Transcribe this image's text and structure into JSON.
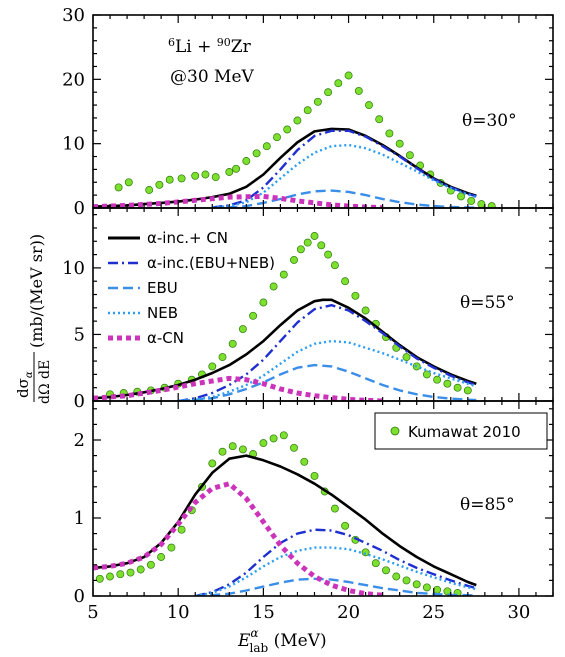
{
  "chart_data": [
    {
      "type": "line",
      "panel": "top",
      "x_range": [
        5,
        32
      ],
      "ylim": [
        0,
        30
      ],
      "yticks": [
        "0",
        "10",
        "20",
        "30"
      ],
      "annotations": {
        "reaction_a": "6",
        "reaction_b": "Li + ",
        "reaction_c": "90",
        "reaction_d": "Zr",
        "energy": "@30 MeV",
        "angle": "θ=30°"
      },
      "series": [
        {
          "key": "total",
          "x": [
            5,
            6,
            7,
            8,
            9,
            10,
            11,
            12,
            13,
            14,
            15,
            16,
            17,
            18,
            19,
            20,
            21,
            22,
            23,
            24,
            25,
            26,
            27,
            27.5
          ],
          "y": [
            0.2,
            0.3,
            0.4,
            0.6,
            0.8,
            1.0,
            1.3,
            1.7,
            2.2,
            3.3,
            5.2,
            7.8,
            10.2,
            11.9,
            12.3,
            12.2,
            11.2,
            9.8,
            8.1,
            6.3,
            4.6,
            3.3,
            2.3,
            1.9
          ]
        },
        {
          "key": "inc",
          "x": [
            12,
            13,
            14,
            15,
            16,
            17,
            18,
            19,
            20,
            21,
            22,
            23,
            24,
            25,
            26,
            27,
            27.5
          ],
          "y": [
            0.1,
            0.4,
            1.2,
            3.2,
            6.0,
            9.0,
            11.2,
            12.0,
            12.0,
            11.1,
            9.6,
            8.0,
            6.2,
            4.5,
            3.2,
            2.2,
            1.8
          ]
        },
        {
          "key": "ebu",
          "x": [
            12,
            13,
            14,
            15,
            16,
            17,
            18,
            19,
            20,
            21,
            22,
            23,
            24,
            25,
            26,
            27,
            27.5
          ],
          "y": [
            0.0,
            0.1,
            0.3,
            0.8,
            1.4,
            2.1,
            2.6,
            2.7,
            2.5,
            2.0,
            1.4,
            0.9,
            0.55,
            0.3,
            0.15,
            0.08,
            0.05
          ]
        },
        {
          "key": "neb",
          "x": [
            12,
            13,
            14,
            15,
            16,
            17,
            18,
            19,
            20,
            21,
            22,
            23,
            24,
            25,
            26,
            27,
            27.5
          ],
          "y": [
            0.1,
            0.3,
            0.9,
            2.4,
            4.6,
            6.8,
            8.6,
            9.6,
            9.8,
            9.3,
            8.3,
            7.0,
            5.7,
            4.3,
            3.1,
            2.1,
            1.7
          ]
        },
        {
          "key": "cn",
          "x": [
            5,
            7,
            9,
            11,
            13,
            15,
            16,
            17,
            18,
            19,
            20,
            21,
            22
          ],
          "y": [
            0.2,
            0.4,
            0.7,
            1.2,
            1.7,
            1.8,
            1.5,
            1.1,
            0.8,
            0.5,
            0.3,
            0.15,
            0.05
          ]
        }
      ],
      "points": {
        "x": [
          6.5,
          7.1,
          8.3,
          8.9,
          9.5,
          10.2,
          11.0,
          11.6,
          12.2,
          13.0,
          13.4,
          14.0,
          14.6,
          15.2,
          15.8,
          16.4,
          17.0,
          17.6,
          18.2,
          18.8,
          19.4,
          20.0,
          20.6,
          21.2,
          21.8,
          22.4,
          23.0,
          23.6,
          24.2,
          24.8,
          25.4,
          26.0,
          26.6,
          27.2,
          27.8,
          28.4
        ],
        "y": [
          3.2,
          4.0,
          2.8,
          3.6,
          4.4,
          4.6,
          5.0,
          5.2,
          4.8,
          5.6,
          6.1,
          7.3,
          8.5,
          9.6,
          11.0,
          12.2,
          13.6,
          15.2,
          16.5,
          18.0,
          19.4,
          20.6,
          18.2,
          16.0,
          13.8,
          11.6,
          10.0,
          8.2,
          6.6,
          5.2,
          3.9,
          2.7,
          1.8,
          1.1,
          0.6,
          0.3
        ]
      }
    },
    {
      "type": "line",
      "panel": "middle",
      "x_range": [
        5,
        32
      ],
      "ylim": [
        0,
        14.5
      ],
      "yticks": [
        "0",
        "5",
        "10"
      ],
      "annotations": {
        "angle": "θ=55°"
      },
      "legend": [
        {
          "key": "total",
          "label": "α-inc.+ CN"
        },
        {
          "key": "inc",
          "label": "α-inc.(EBU+NEB)"
        },
        {
          "key": "ebu",
          "label": "EBU"
        },
        {
          "key": "neb",
          "label": "NEB"
        },
        {
          "key": "cn",
          "label": "α-CN"
        }
      ],
      "series": [
        {
          "key": "total",
          "x": [
            5,
            6,
            7,
            8,
            9,
            10,
            11,
            12,
            13,
            14,
            15,
            16,
            17,
            18,
            18.5,
            19,
            20,
            21,
            22,
            23,
            24,
            25,
            26,
            27,
            27.5
          ],
          "y": [
            0.2,
            0.3,
            0.45,
            0.65,
            0.9,
            1.2,
            1.6,
            2.1,
            2.7,
            3.5,
            4.5,
            5.7,
            6.8,
            7.5,
            7.6,
            7.6,
            7.0,
            6.2,
            5.2,
            4.2,
            3.3,
            2.6,
            2.0,
            1.5,
            1.3
          ]
        },
        {
          "key": "inc",
          "x": [
            10,
            11,
            12,
            13,
            14,
            15,
            16,
            17,
            18,
            19,
            20,
            21,
            22,
            23,
            24,
            25,
            26,
            27,
            27.5
          ],
          "y": [
            0.0,
            0.2,
            0.6,
            1.2,
            2.0,
            3.1,
            4.5,
            5.9,
            6.9,
            7.2,
            6.8,
            6.0,
            5.1,
            4.1,
            3.2,
            2.5,
            1.9,
            1.4,
            1.2
          ]
        },
        {
          "key": "ebu",
          "x": [
            10,
            11,
            12,
            13,
            14,
            15,
            16,
            17,
            18,
            19,
            20,
            21,
            22,
            23,
            24,
            25,
            26,
            27,
            27.5
          ],
          "y": [
            0.0,
            0.1,
            0.2,
            0.5,
            0.9,
            1.4,
            2.0,
            2.5,
            2.7,
            2.6,
            2.2,
            1.7,
            1.2,
            0.8,
            0.5,
            0.3,
            0.18,
            0.1,
            0.07
          ]
        },
        {
          "key": "neb",
          "x": [
            10,
            11,
            12,
            13,
            14,
            15,
            16,
            17,
            18,
            19,
            20,
            21,
            22,
            23,
            24,
            25,
            26,
            27,
            27.5
          ],
          "y": [
            0.0,
            0.1,
            0.3,
            0.7,
            1.2,
            1.9,
            2.8,
            3.7,
            4.3,
            4.5,
            4.4,
            4.0,
            3.6,
            3.1,
            2.6,
            2.1,
            1.7,
            1.3,
            1.1
          ]
        },
        {
          "key": "cn",
          "x": [
            5,
            7,
            9,
            11,
            12,
            13,
            14,
            15,
            16,
            17,
            18,
            19,
            20,
            21,
            22
          ],
          "y": [
            0.2,
            0.4,
            0.8,
            1.3,
            1.5,
            1.7,
            1.6,
            1.3,
            0.9,
            0.6,
            0.4,
            0.25,
            0.12,
            0.05,
            0.0
          ]
        }
      ],
      "points": {
        "x": [
          6.0,
          6.8,
          7.6,
          8.4,
          9.2,
          10.0,
          10.8,
          11.4,
          12.0,
          12.6,
          13.2,
          13.8,
          14.4,
          15.0,
          15.6,
          16.2,
          16.8,
          17.2,
          17.6,
          18.0,
          18.4,
          18.8,
          19.2,
          19.8,
          20.4,
          21.0,
          21.6,
          22.2,
          22.8,
          23.4,
          24.0,
          24.6,
          25.2,
          25.8,
          26.4,
          27.0
        ],
        "y": [
          0.5,
          0.6,
          0.7,
          0.8,
          1.0,
          1.3,
          1.6,
          2.0,
          2.6,
          3.3,
          4.3,
          5.4,
          6.4,
          7.4,
          8.6,
          9.5,
          10.6,
          11.4,
          11.9,
          12.4,
          11.7,
          11.0,
          10.2,
          9.0,
          7.9,
          6.8,
          5.8,
          4.8,
          4.0,
          3.3,
          2.6,
          2.0,
          1.6,
          1.3,
          1.0,
          0.8
        ]
      }
    },
    {
      "type": "line",
      "panel": "bottom",
      "x_range": [
        5,
        32
      ],
      "ylim": [
        0,
        2.5
      ],
      "yticks": [
        "0",
        "1",
        "2"
      ],
      "xticks": [
        "5",
        "10",
        "15",
        "20",
        "25",
        "30"
      ],
      "xlabel_a": "E",
      "xlabel_sup": "α",
      "xlabel_sub": "lab",
      "xlabel_b": " (MeV)",
      "ylabel_num_a": "dσ",
      "ylabel_num_sub": "α",
      "ylabel_den": "dΩ dE",
      "ylabel_unit": "(mb/(MeV sr))",
      "annotations": {
        "angle": "θ=85°"
      },
      "legend": [
        {
          "key": "points",
          "label": "Kumawat 2010"
        }
      ],
      "series": [
        {
          "key": "total",
          "x": [
            5,
            6,
            7,
            8,
            9,
            10,
            11,
            12,
            13,
            14,
            15,
            16,
            17,
            18,
            19,
            20,
            21,
            22,
            23,
            24,
            25,
            26,
            27,
            27.5
          ],
          "y": [
            0.36,
            0.38,
            0.42,
            0.5,
            0.68,
            0.95,
            1.3,
            1.58,
            1.76,
            1.8,
            1.74,
            1.66,
            1.56,
            1.44,
            1.3,
            1.14,
            0.98,
            0.8,
            0.64,
            0.5,
            0.38,
            0.28,
            0.18,
            0.14
          ]
        },
        {
          "key": "inc",
          "x": [
            11,
            12,
            13,
            14,
            15,
            16,
            17,
            18,
            19,
            20,
            21,
            22,
            23,
            24,
            25,
            26,
            27,
            27.5
          ],
          "y": [
            0.0,
            0.05,
            0.15,
            0.3,
            0.5,
            0.68,
            0.8,
            0.85,
            0.84,
            0.78,
            0.68,
            0.58,
            0.46,
            0.36,
            0.28,
            0.2,
            0.13,
            0.1
          ]
        },
        {
          "key": "ebu",
          "x": [
            11,
            12,
            13,
            14,
            15,
            16,
            17,
            18,
            19,
            20,
            21,
            22,
            23,
            24,
            25,
            26,
            27,
            27.5
          ],
          "y": [
            0.0,
            0.01,
            0.03,
            0.07,
            0.12,
            0.17,
            0.21,
            0.22,
            0.21,
            0.18,
            0.14,
            0.1,
            0.07,
            0.04,
            0.025,
            0.015,
            0.01,
            0.005
          ]
        },
        {
          "key": "neb",
          "x": [
            11,
            12,
            13,
            14,
            15,
            16,
            17,
            18,
            19,
            20,
            21,
            22,
            23,
            24,
            25,
            26,
            27,
            27.5
          ],
          "y": [
            0.0,
            0.04,
            0.12,
            0.24,
            0.38,
            0.5,
            0.58,
            0.62,
            0.62,
            0.6,
            0.54,
            0.47,
            0.39,
            0.31,
            0.24,
            0.17,
            0.11,
            0.09
          ]
        },
        {
          "key": "cn",
          "x": [
            5,
            6,
            7,
            8,
            9,
            10,
            11,
            12,
            13,
            14,
            15,
            16,
            17,
            18,
            19,
            20,
            21,
            22
          ],
          "y": [
            0.36,
            0.38,
            0.42,
            0.5,
            0.66,
            0.92,
            1.2,
            1.38,
            1.44,
            1.25,
            0.95,
            0.65,
            0.42,
            0.25,
            0.14,
            0.07,
            0.03,
            0.01
          ]
        }
      ],
      "points": {
        "x": [
          5.4,
          6.0,
          6.6,
          7.2,
          7.8,
          8.4,
          9.0,
          9.6,
          10.2,
          10.8,
          11.4,
          12.0,
          12.6,
          13.2,
          13.8,
          14.4,
          15.0,
          15.6,
          16.2,
          16.8,
          17.4,
          18.0,
          18.6,
          19.2,
          19.8,
          20.4,
          21.0,
          21.6,
          22.2,
          22.8,
          23.4,
          24.0,
          24.6,
          25.2,
          25.8,
          26.4
        ],
        "y": [
          0.22,
          0.25,
          0.28,
          0.3,
          0.34,
          0.4,
          0.5,
          0.62,
          0.85,
          1.1,
          1.4,
          1.7,
          1.85,
          1.92,
          1.88,
          1.82,
          1.96,
          2.02,
          2.06,
          1.9,
          1.72,
          1.54,
          1.34,
          1.12,
          0.9,
          0.72,
          0.56,
          0.42,
          0.33,
          0.25,
          0.2,
          0.15,
          0.11,
          0.08,
          0.06,
          0.04
        ]
      }
    }
  ],
  "colors": {
    "total": "#000000",
    "inc": "#1f2fd0",
    "ebu": "#3a8ee8",
    "neb": "#2a9df4",
    "cn": "#cc33bb",
    "points_fill": "#7ce02c",
    "points_stroke": "#2f7a10"
  }
}
